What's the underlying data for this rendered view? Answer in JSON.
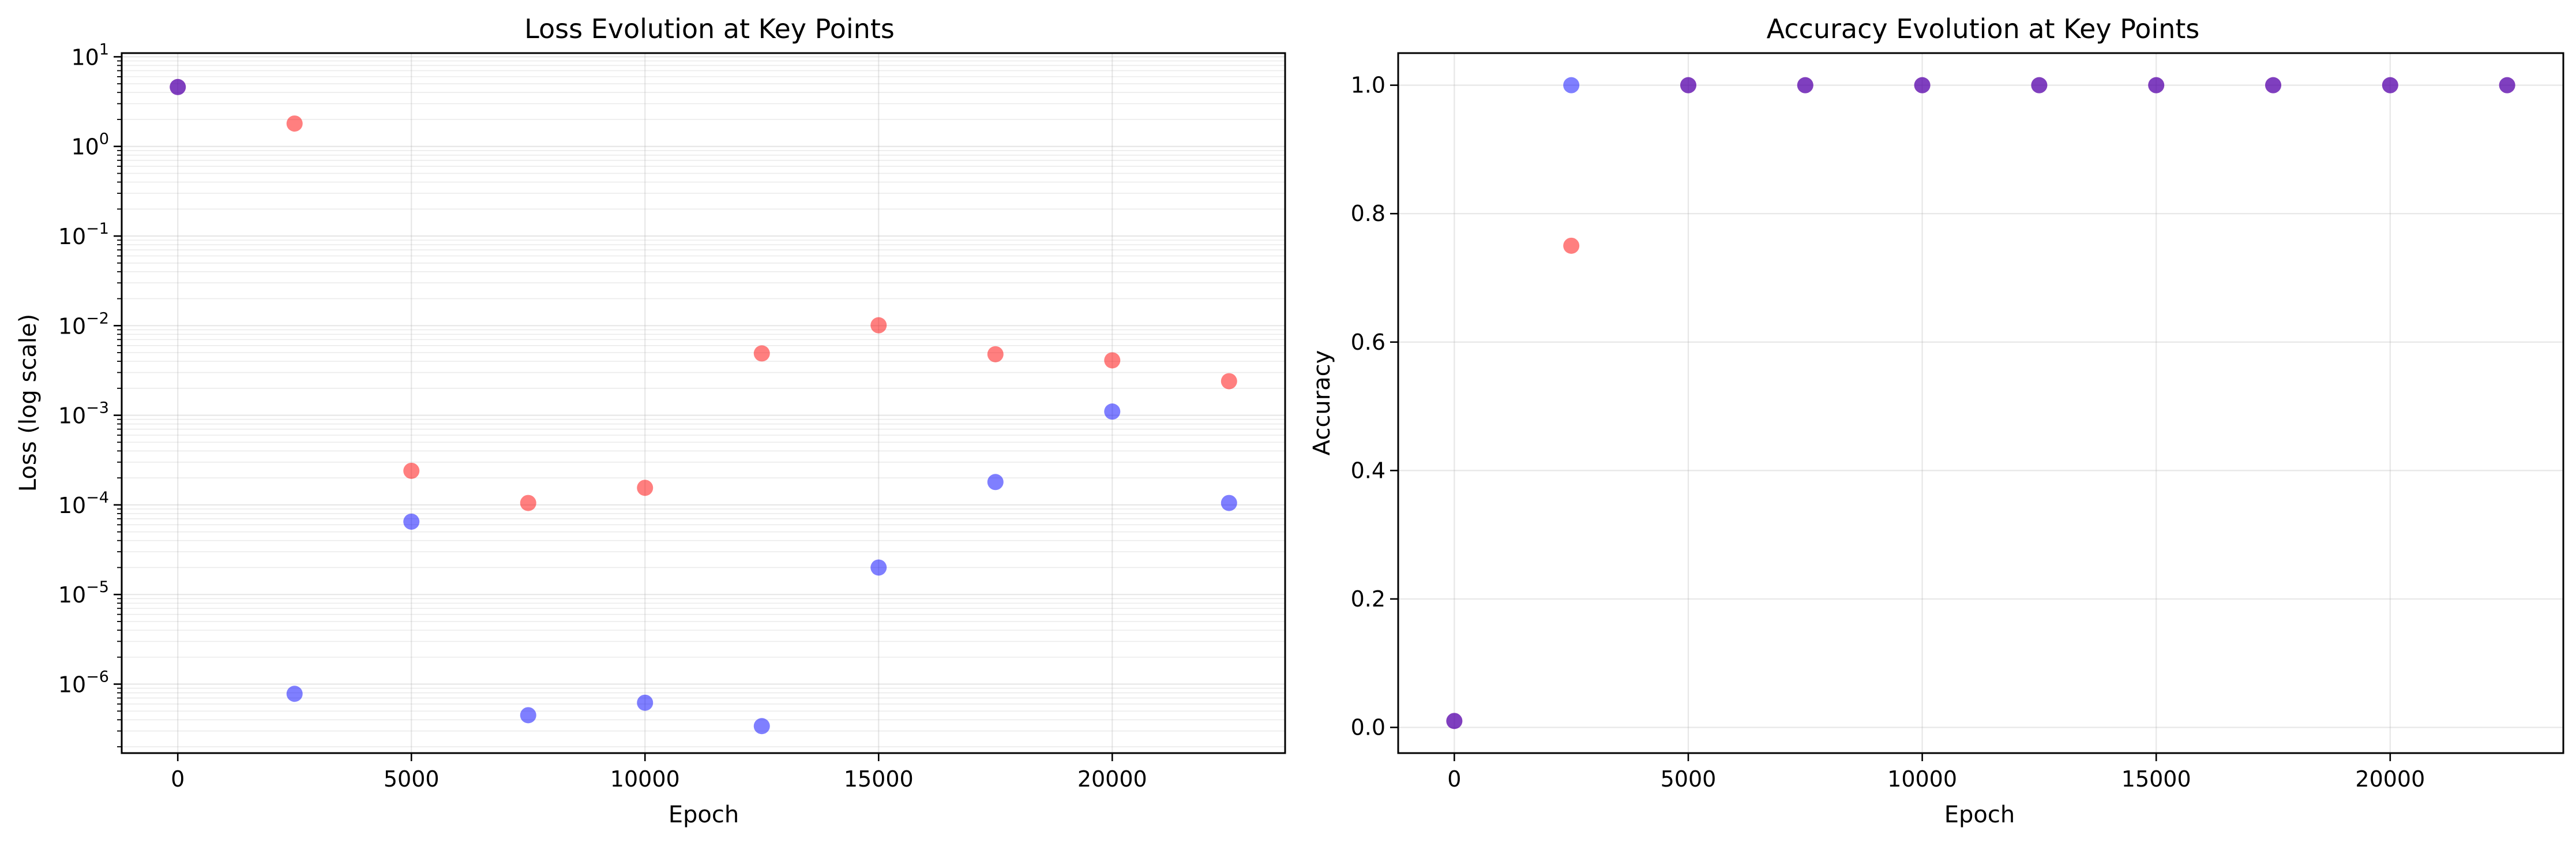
{
  "chart_data": [
    {
      "type": "scatter",
      "title": "Loss Evolution at Key Points",
      "xlabel": "Epoch",
      "ylabel": "Loss (log scale)",
      "y_scale": "log",
      "xlim": [
        -1200,
        23700
      ],
      "ylim": [
        1.7e-07,
        11
      ],
      "x_ticks": [
        0,
        5000,
        10000,
        15000,
        20000
      ],
      "y_tick_exponents": [
        -6,
        -5,
        -4,
        -3,
        -2,
        -1,
        0,
        1
      ],
      "grid": true,
      "marker_alpha": 0.5,
      "series": [
        {
          "color": "#ff0000",
          "x": [
            0,
            2500,
            5000,
            7500,
            10000,
            12500,
            15000,
            17500,
            20000,
            22500
          ],
          "y": [
            4.6,
            1.8,
            0.00024,
            0.000105,
            0.000155,
            0.0049,
            0.0101,
            0.0048,
            0.0041,
            0.0024
          ]
        },
        {
          "color": "#0000ff",
          "x": [
            0,
            2500,
            5000,
            7500,
            10000,
            12500,
            15000,
            17500,
            20000,
            22500
          ],
          "y": [
            4.6,
            7.8e-07,
            6.5e-05,
            4.5e-07,
            6.2e-07,
            3.4e-07,
            2e-05,
            0.00018,
            0.0011,
            0.000105
          ]
        }
      ]
    },
    {
      "type": "scatter",
      "title": "Accuracy Evolution at Key Points",
      "xlabel": "Epoch",
      "ylabel": "Accuracy",
      "y_scale": "linear",
      "xlim": [
        -1200,
        23700
      ],
      "ylim": [
        -0.04,
        1.05
      ],
      "x_ticks": [
        0,
        5000,
        10000,
        15000,
        20000
      ],
      "y_ticks": [
        "0.0",
        "0.2",
        "0.4",
        "0.6",
        "0.8",
        "1.0"
      ],
      "grid": true,
      "marker_alpha": 0.5,
      "series": [
        {
          "color": "#ff0000",
          "x": [
            0,
            2500,
            5000,
            7500,
            10000,
            12500,
            15000,
            17500,
            20000,
            22500
          ],
          "y": [
            0.01,
            0.75,
            1.0,
            1.0,
            1.0,
            1.0,
            1.0,
            1.0,
            1.0,
            1.0
          ]
        },
        {
          "color": "#0000ff",
          "x": [
            0,
            2500,
            5000,
            7500,
            10000,
            12500,
            15000,
            17500,
            20000,
            22500
          ],
          "y": [
            0.01,
            1.0,
            1.0,
            1.0,
            1.0,
            1.0,
            1.0,
            1.0,
            1.0,
            1.0
          ]
        }
      ]
    }
  ]
}
